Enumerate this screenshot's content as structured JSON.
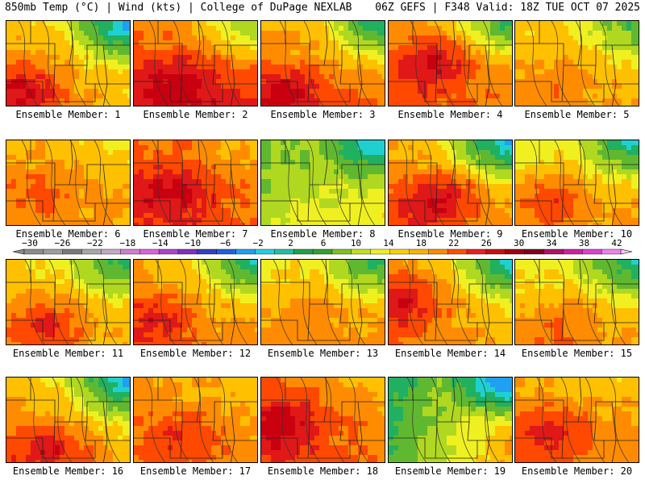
{
  "header": {
    "left": "850mb Temp (°C) | Wind (kts) | College of DuPage NEXLAB",
    "right": "06Z GEFS | F348 Valid: 18Z TUE OCT 07 2025"
  },
  "panels": [
    {
      "label": "Ensemble Member: 1",
      "profile": "w1"
    },
    {
      "label": "Ensemble Member: 2",
      "profile": "w2"
    },
    {
      "label": "Ensemble Member: 3",
      "profile": "w3"
    },
    {
      "label": "Ensemble Member: 4",
      "profile": "w4"
    },
    {
      "label": "Ensemble Member: 5",
      "profile": "w5"
    },
    {
      "label": "Ensemble Member: 6",
      "profile": "w6"
    },
    {
      "label": "Ensemble Member: 7",
      "profile": "w7"
    },
    {
      "label": "Ensemble Member: 8",
      "profile": "c8"
    },
    {
      "label": "Ensemble Member: 9",
      "profile": "w9"
    },
    {
      "label": "Ensemble Member: 10",
      "profile": "w10"
    },
    {
      "label": "Ensemble Member: 11",
      "profile": "w11"
    },
    {
      "label": "Ensemble Member: 12",
      "profile": "w12"
    },
    {
      "label": "Ensemble Member: 13",
      "profile": "w13"
    },
    {
      "label": "Ensemble Member: 14",
      "profile": "w14"
    },
    {
      "label": "Ensemble Member: 15",
      "profile": "w15"
    },
    {
      "label": "Ensemble Member: 16",
      "profile": "w16"
    },
    {
      "label": "Ensemble Member: 17",
      "profile": "w17"
    },
    {
      "label": "Ensemble Member: 18",
      "profile": "w18"
    },
    {
      "label": "Ensemble Member: 19",
      "profile": "c19"
    },
    {
      "label": "Ensemble Member: 20",
      "profile": "w20"
    }
  ],
  "colorbar": {
    "ticks": [
      "-30",
      "-26",
      "-22",
      "-18",
      "-14",
      "-10",
      "-6",
      "-2",
      "2",
      "6",
      "10",
      "14",
      "18",
      "22",
      "26",
      "30",
      "34",
      "38",
      "42"
    ],
    "colors": [
      "#8c8c8c",
      "#9e9e9e",
      "#7a7a7a",
      "#a8a8a8",
      "#c4a8c4",
      "#d080d0",
      "#e060e0",
      "#b040d0",
      "#8030c0",
      "#3040c0",
      "#2060e0",
      "#20a0f0",
      "#20d0e0",
      "#20c0a0",
      "#20a050",
      "#30a030",
      "#80c020",
      "#c0e020",
      "#f0f020",
      "#ffd000",
      "#ffb000",
      "#ff8c00",
      "#ff5000",
      "#e82020",
      "#c81010",
      "#a00010",
      "#800020",
      "#b0106a",
      "#d020a0",
      "#e040d0",
      "#f080f0"
    ]
  },
  "legend_units": {
    "low": -30,
    "high": 42
  }
}
